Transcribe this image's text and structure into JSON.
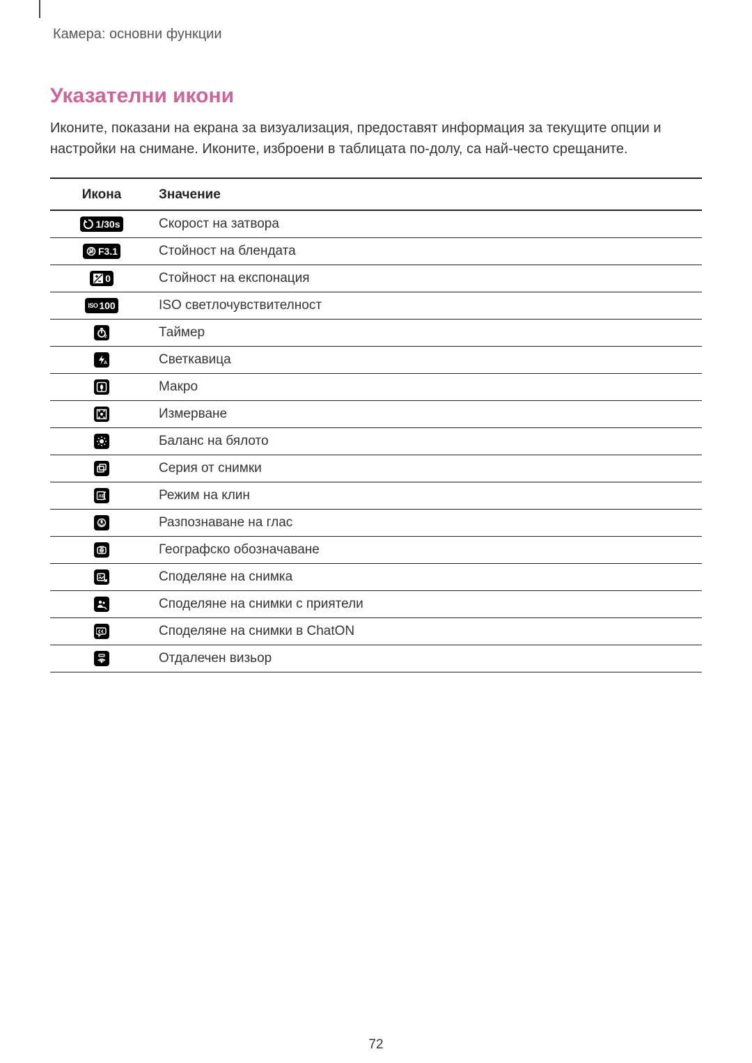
{
  "colors": {
    "heading": "#cc6699",
    "text": "#333333",
    "rule": "#222222",
    "badge_bg": "#000000",
    "badge_fg": "#ffffff"
  },
  "breadcrumb": "Камера: основни функции",
  "heading": "Указателни икони",
  "intro": "Иконите, показани на екрана за визуализация, предоставят информация за текущите опции и настройки на снимане. Иконите, изброени в таблицата по-долу, са най-често срещаните.",
  "table": {
    "columns": [
      "Икона",
      "Значение"
    ],
    "rows": [
      {
        "icon_kind": "shutter",
        "icon_text": "1/30s",
        "meaning": "Скорост на затвора"
      },
      {
        "icon_kind": "aperture",
        "icon_text": "F3.1",
        "meaning": "Стойност на блендата"
      },
      {
        "icon_kind": "exposure",
        "icon_text": "0",
        "meaning": "Стойност на експонация"
      },
      {
        "icon_kind": "iso",
        "icon_text": "100",
        "meaning": "ISO светлочувствителност"
      },
      {
        "icon_kind": "timer",
        "icon_text": "",
        "meaning": "Таймер"
      },
      {
        "icon_kind": "flash",
        "icon_text": "",
        "meaning": "Светкавица"
      },
      {
        "icon_kind": "macro",
        "icon_text": "",
        "meaning": "Макро"
      },
      {
        "icon_kind": "metering",
        "icon_text": "",
        "meaning": "Измерване"
      },
      {
        "icon_kind": "wb",
        "icon_text": "",
        "meaning": "Баланс на бялото"
      },
      {
        "icon_kind": "burst",
        "icon_text": "",
        "meaning": "Серия от снимки"
      },
      {
        "icon_kind": "wedge",
        "icon_text": "",
        "meaning": "Режим на клин"
      },
      {
        "icon_kind": "voice",
        "icon_text": "",
        "meaning": "Разпознаване на глас"
      },
      {
        "icon_kind": "geotag",
        "icon_text": "",
        "meaning": "Географско обозначаване"
      },
      {
        "icon_kind": "share",
        "icon_text": "",
        "meaning": "Споделяне на снимка"
      },
      {
        "icon_kind": "buddyshare",
        "icon_text": "",
        "meaning": "Споделяне на снимки с приятели"
      },
      {
        "icon_kind": "chaton",
        "icon_text": "",
        "meaning": "Споделяне на снимки в ChatON"
      },
      {
        "icon_kind": "remote",
        "icon_text": "",
        "meaning": "Отдалечен визьор"
      }
    ]
  },
  "page_number": "72"
}
